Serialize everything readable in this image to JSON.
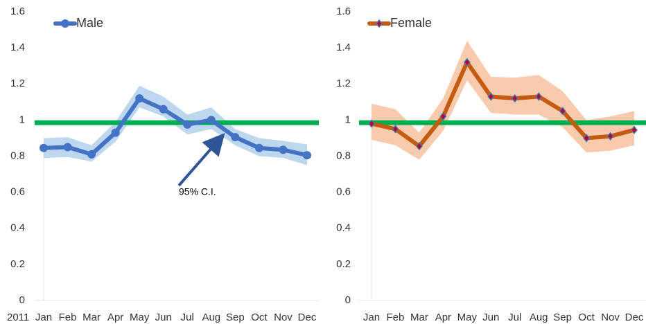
{
  "chart_data": [
    {
      "type": "line",
      "categories": [
        "Jan",
        "Feb",
        "Mar",
        "Apr",
        "May",
        "Jun",
        "Jul",
        "Aug",
        "Sep",
        "Oct",
        "Nov",
        "Dec"
      ],
      "year_label": "2011",
      "series": [
        {
          "name": "Male",
          "color": "#4472c4",
          "marker": "circle",
          "marker_fill": "#4472c4",
          "values": [
            0.845,
            0.85,
            0.81,
            0.93,
            1.12,
            1.06,
            0.975,
            1.0,
            0.905,
            0.845,
            0.835,
            0.805
          ]
        }
      ],
      "band": {
        "color": "#bdd7ee",
        "upper": [
          0.9,
          0.905,
          0.86,
          0.99,
          1.19,
          1.13,
          1.03,
          1.07,
          0.95,
          0.9,
          0.885,
          0.865
        ],
        "lower": [
          0.79,
          0.795,
          0.77,
          0.88,
          1.07,
          1.02,
          0.92,
          0.95,
          0.86,
          0.8,
          0.79,
          0.75
        ]
      },
      "ref_line": {
        "value": 0.985,
        "color": "#00b050"
      },
      "annotation": "95% C.I.",
      "ylim": [
        0,
        1.6
      ],
      "yticks": [
        0,
        0.2,
        0.4,
        0.6,
        0.8,
        1,
        1.2,
        1.4,
        1.6
      ],
      "legend": "upper left"
    },
    {
      "type": "line",
      "categories": [
        "Jan",
        "Feb",
        "Mar",
        "Apr",
        "May",
        "Jun",
        "Jul",
        "Aug",
        "Sep",
        "Oct",
        "Nov",
        "Dec"
      ],
      "series": [
        {
          "name": "Female",
          "color": "#c55a11",
          "marker": "diamond",
          "marker_fill": "#c00000",
          "values": [
            0.98,
            0.95,
            0.855,
            1.02,
            1.32,
            1.13,
            1.12,
            1.13,
            1.05,
            0.9,
            0.91,
            0.945
          ]
        }
      ],
      "band": {
        "color": "#f8cbad",
        "upper": [
          1.09,
          1.06,
          0.93,
          1.12,
          1.44,
          1.24,
          1.235,
          1.25,
          1.16,
          1.0,
          1.02,
          1.05
        ],
        "lower": [
          0.89,
          0.86,
          0.78,
          0.94,
          1.22,
          1.04,
          1.03,
          1.03,
          0.96,
          0.82,
          0.83,
          0.86
        ]
      },
      "ref_line": {
        "value": 0.985,
        "color": "#00b050"
      },
      "ylim": [
        0,
        1.6
      ],
      "yticks": [
        0,
        0.2,
        0.4,
        0.6,
        0.8,
        1,
        1.2,
        1.4,
        1.6
      ],
      "legend": "upper left"
    }
  ]
}
